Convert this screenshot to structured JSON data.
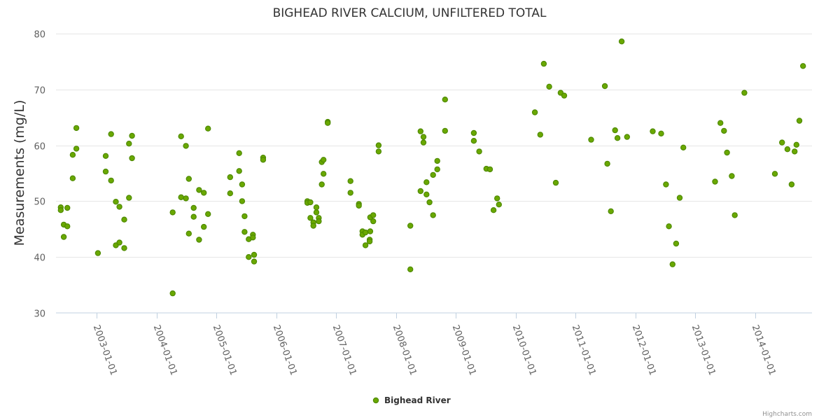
{
  "chart_data": {
    "type": "scatter",
    "title": "BIGHEAD RIVER CALCIUM, UNFILTERED TOTAL",
    "xlabel": "",
    "ylabel": "Measurements (mg/L)",
    "ylim": [
      30,
      80
    ],
    "yticks": [
      30,
      40,
      50,
      60,
      70,
      80
    ],
    "xlim": [
      2002.32,
      2014.95
    ],
    "xticks": [
      {
        "value": 2003,
        "label": "2003-01-01"
      },
      {
        "value": 2004,
        "label": "2004-01-01"
      },
      {
        "value": 2005,
        "label": "2005-01-01"
      },
      {
        "value": 2006,
        "label": "2006-01-01"
      },
      {
        "value": 2007,
        "label": "2007-01-01"
      },
      {
        "value": 2008,
        "label": "2008-01-01"
      },
      {
        "value": 2009,
        "label": "2009-01-01"
      },
      {
        "value": 2010,
        "label": "2010-01-01"
      },
      {
        "value": 2011,
        "label": "2011-01-01"
      },
      {
        "value": 2012,
        "label": "2012-01-01"
      },
      {
        "value": 2013,
        "label": "2013-01-01"
      },
      {
        "value": 2014,
        "label": "2014-01-01"
      }
    ],
    "grid": true,
    "legend": "bottom-center",
    "series": [
      {
        "name": "Bighead River",
        "color": "#6aa800",
        "border_color": "#4e8a00",
        "points": [
          [
            2002.4,
            48.9
          ],
          [
            2002.4,
            48.4
          ],
          [
            2002.45,
            45.8
          ],
          [
            2002.45,
            43.6
          ],
          [
            2002.51,
            48.8
          ],
          [
            2002.51,
            45.5
          ],
          [
            2002.6,
            58.3
          ],
          [
            2002.6,
            54.1
          ],
          [
            2002.66,
            63.1
          ],
          [
            2002.66,
            59.4
          ],
          [
            2003.02,
            40.7
          ],
          [
            2003.15,
            58.1
          ],
          [
            2003.15,
            55.3
          ],
          [
            2003.24,
            62.0
          ],
          [
            2003.24,
            53.7
          ],
          [
            2003.32,
            49.9
          ],
          [
            2003.32,
            42.1
          ],
          [
            2003.38,
            49.0
          ],
          [
            2003.38,
            42.6
          ],
          [
            2003.46,
            46.7
          ],
          [
            2003.46,
            41.6
          ],
          [
            2003.54,
            60.3
          ],
          [
            2003.54,
            50.6
          ],
          [
            2003.59,
            61.7
          ],
          [
            2003.59,
            57.7
          ],
          [
            2004.27,
            48.0
          ],
          [
            2004.27,
            33.5
          ],
          [
            2004.41,
            61.6
          ],
          [
            2004.41,
            50.7
          ],
          [
            2004.49,
            59.9
          ],
          [
            2004.49,
            50.5
          ],
          [
            2004.54,
            54.0
          ],
          [
            2004.54,
            44.2
          ],
          [
            2004.62,
            48.8
          ],
          [
            2004.62,
            47.2
          ],
          [
            2004.71,
            52.0
          ],
          [
            2004.71,
            43.1
          ],
          [
            2004.79,
            51.5
          ],
          [
            2004.79,
            45.4
          ],
          [
            2004.86,
            63.0
          ],
          [
            2004.86,
            47.7
          ],
          [
            2005.23,
            54.3
          ],
          [
            2005.23,
            51.4
          ],
          [
            2005.38,
            58.6
          ],
          [
            2005.38,
            55.4
          ],
          [
            2005.43,
            53.0
          ],
          [
            2005.43,
            50.0
          ],
          [
            2005.47,
            47.3
          ],
          [
            2005.47,
            44.5
          ],
          [
            2005.54,
            43.2
          ],
          [
            2005.54,
            40.0
          ],
          [
            2005.61,
            44.0
          ],
          [
            2005.61,
            43.5
          ],
          [
            2005.63,
            40.4
          ],
          [
            2005.63,
            39.2
          ],
          [
            2005.78,
            57.8
          ],
          [
            2005.78,
            57.4
          ],
          [
            2006.52,
            50.0
          ],
          [
            2006.52,
            49.7
          ],
          [
            2006.57,
            49.8
          ],
          [
            2006.57,
            47.0
          ],
          [
            2006.62,
            46.2
          ],
          [
            2006.62,
            45.6
          ],
          [
            2006.67,
            48.9
          ],
          [
            2006.67,
            48.0
          ],
          [
            2006.71,
            47.0
          ],
          [
            2006.71,
            46.4
          ],
          [
            2006.76,
            57.0
          ],
          [
            2006.76,
            53.0
          ],
          [
            2006.79,
            57.4
          ],
          [
            2006.79,
            54.9
          ],
          [
            2006.86,
            64.2
          ],
          [
            2006.86,
            64.0
          ],
          [
            2007.24,
            53.6
          ],
          [
            2007.24,
            51.5
          ],
          [
            2007.38,
            49.5
          ],
          [
            2007.38,
            49.2
          ],
          [
            2007.44,
            44.6
          ],
          [
            2007.44,
            44.0
          ],
          [
            2007.49,
            44.4
          ],
          [
            2007.49,
            42.1
          ],
          [
            2007.57,
            47.1
          ],
          [
            2007.57,
            44.6
          ],
          [
            2007.56,
            43.1
          ],
          [
            2007.56,
            42.8
          ],
          [
            2007.62,
            47.5
          ],
          [
            2007.62,
            46.4
          ],
          [
            2007.71,
            60.0
          ],
          [
            2007.71,
            58.9
          ],
          [
            2008.24,
            45.6
          ],
          [
            2008.24,
            37.8
          ],
          [
            2008.41,
            62.5
          ],
          [
            2008.41,
            51.8
          ],
          [
            2008.46,
            61.5
          ],
          [
            2008.46,
            60.5
          ],
          [
            2008.51,
            53.4
          ],
          [
            2008.51,
            51.2
          ],
          [
            2008.56,
            49.8
          ],
          [
            2008.62,
            54.7
          ],
          [
            2008.62,
            47.5
          ],
          [
            2008.69,
            57.2
          ],
          [
            2008.69,
            55.7
          ],
          [
            2008.82,
            68.2
          ],
          [
            2008.82,
            62.6
          ],
          [
            2009.3,
            62.2
          ],
          [
            2009.3,
            60.8
          ],
          [
            2009.39,
            58.9
          ],
          [
            2009.51,
            55.8
          ],
          [
            2009.57,
            55.7
          ],
          [
            2009.63,
            48.4
          ],
          [
            2009.69,
            50.5
          ],
          [
            2009.72,
            49.4
          ],
          [
            2010.32,
            65.9
          ],
          [
            2010.41,
            61.9
          ],
          [
            2010.47,
            74.6
          ],
          [
            2010.56,
            70.5
          ],
          [
            2010.67,
            53.3
          ],
          [
            2010.75,
            69.4
          ],
          [
            2010.81,
            68.9
          ],
          [
            2011.26,
            61.0
          ],
          [
            2011.49,
            70.6
          ],
          [
            2011.53,
            56.7
          ],
          [
            2011.59,
            48.2
          ],
          [
            2011.66,
            62.7
          ],
          [
            2011.7,
            61.3
          ],
          [
            2011.77,
            78.6
          ],
          [
            2011.86,
            61.5
          ],
          [
            2012.29,
            62.5
          ],
          [
            2012.43,
            62.1
          ],
          [
            2012.51,
            53.0
          ],
          [
            2012.56,
            45.5
          ],
          [
            2012.62,
            38.7
          ],
          [
            2012.68,
            42.4
          ],
          [
            2012.74,
            50.6
          ],
          [
            2012.8,
            59.6
          ],
          [
            2013.33,
            53.5
          ],
          [
            2013.42,
            64.0
          ],
          [
            2013.48,
            62.6
          ],
          [
            2013.53,
            58.7
          ],
          [
            2013.61,
            54.5
          ],
          [
            2013.66,
            47.5
          ],
          [
            2013.82,
            69.4
          ],
          [
            2014.33,
            54.9
          ],
          [
            2014.45,
            60.5
          ],
          [
            2014.54,
            59.3
          ],
          [
            2014.61,
            53.0
          ],
          [
            2014.66,
            58.9
          ],
          [
            2014.69,
            60.1
          ],
          [
            2014.74,
            64.4
          ],
          [
            2014.8,
            74.2
          ]
        ]
      }
    ]
  },
  "credits": "Highcharts.com"
}
